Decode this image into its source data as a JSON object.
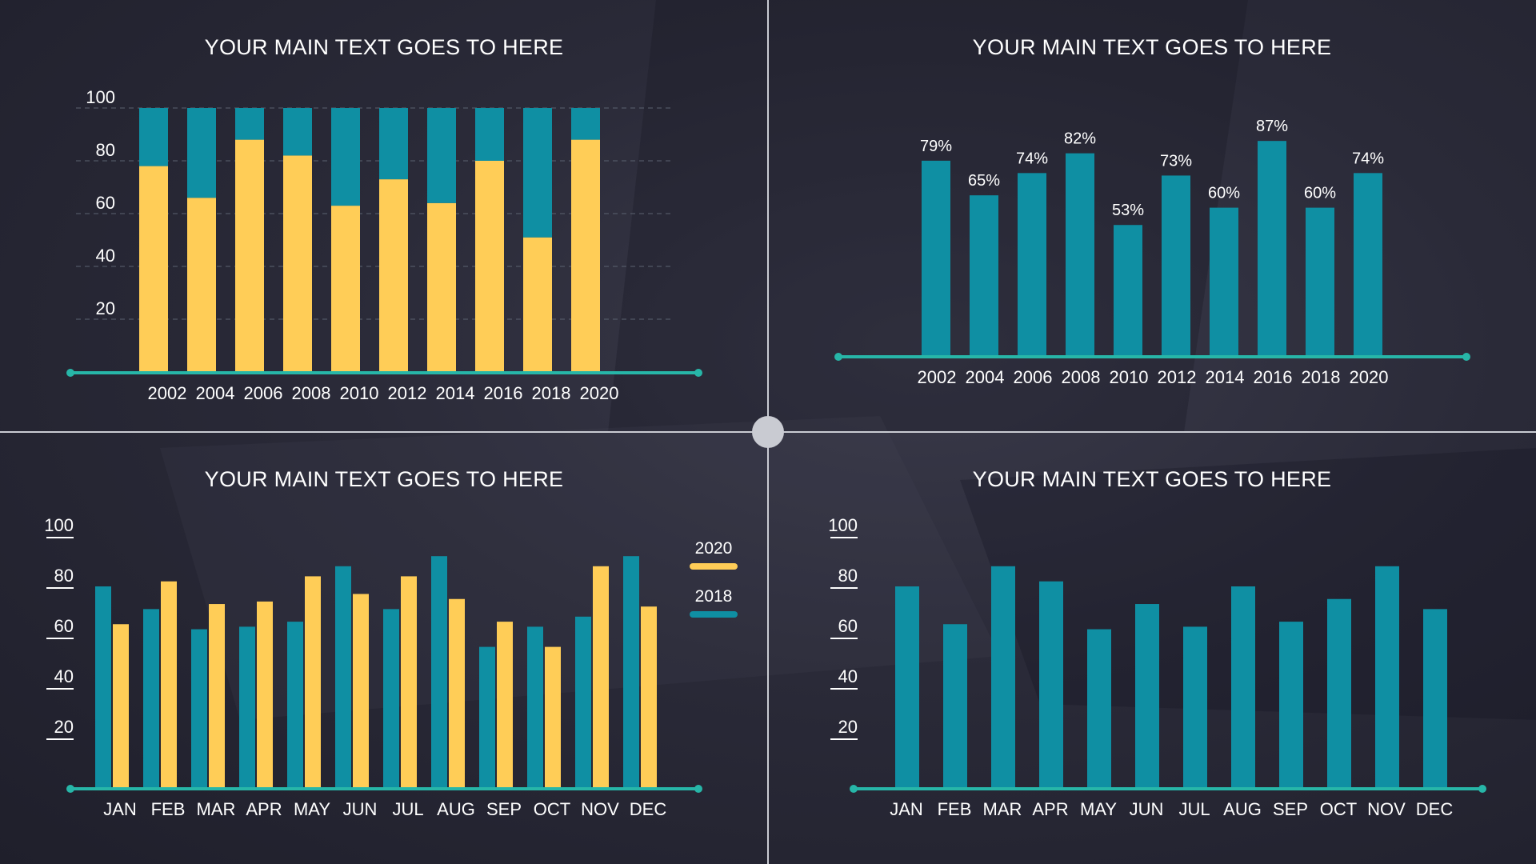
{
  "colors": {
    "teal": "#0f8fa3",
    "yellow": "#ffcd57",
    "axis": "#27b6a8",
    "grid": "#5b6270",
    "text": "#ffffff"
  },
  "chart_data": [
    {
      "type": "bar",
      "stacked": true,
      "title": "YOUR MAIN TEXT GOES TO HERE",
      "categories": [
        "2002",
        "2004",
        "2006",
        "2008",
        "2010",
        "2012",
        "2014",
        "2016",
        "2018",
        "2020"
      ],
      "series": [
        {
          "color": "yellow",
          "values": [
            78,
            66,
            88,
            82,
            63,
            73,
            64,
            80,
            51,
            88
          ]
        },
        {
          "color": "teal",
          "values": [
            22,
            34,
            12,
            18,
            37,
            27,
            36,
            20,
            49,
            12
          ]
        }
      ],
      "ylim": [
        0,
        100
      ],
      "yticks": [
        "20",
        "40",
        "60",
        "80",
        "100"
      ],
      "grid": true
    },
    {
      "type": "bar",
      "title": "YOUR MAIN TEXT GOES TO HERE",
      "categories": [
        "2002",
        "2004",
        "2006",
        "2008",
        "2010",
        "2012",
        "2014",
        "2016",
        "2018",
        "2020"
      ],
      "values": [
        79,
        65,
        74,
        82,
        53,
        73,
        60,
        87,
        60,
        74
      ],
      "data_labels": [
        "79%",
        "65%",
        "74%",
        "82%",
        "53%",
        "73%",
        "60%",
        "87%",
        "60%",
        "74%"
      ],
      "ylim": [
        0,
        100
      ]
    },
    {
      "type": "bar",
      "title": "YOUR MAIN TEXT GOES TO HERE",
      "categories": [
        "JAN",
        "FEB",
        "MAR",
        "APR",
        "MAY",
        "JUN",
        "JUL",
        "AUG",
        "SEP",
        "OCT",
        "NOV",
        "DEC"
      ],
      "series": [
        {
          "name": "2018",
          "color": "teal",
          "values": [
            80,
            71,
            63,
            64,
            66,
            88,
            71,
            92,
            56,
            64,
            68,
            92
          ]
        },
        {
          "name": "2020",
          "color": "yellow",
          "values": [
            65,
            82,
            73,
            74,
            84,
            77,
            84,
            75,
            66,
            56,
            88,
            72
          ]
        }
      ],
      "ylim": [
        0,
        100
      ],
      "yticks": [
        "20",
        "40",
        "60",
        "80",
        "100"
      ],
      "legend": "right"
    },
    {
      "type": "bar",
      "title": "YOUR MAIN TEXT GOES TO HERE",
      "categories": [
        "JAN",
        "FEB",
        "MAR",
        "APR",
        "MAY",
        "JUN",
        "JUL",
        "AUG",
        "SEP",
        "OCT",
        "NOV",
        "DEC"
      ],
      "values": [
        80,
        65,
        88,
        82,
        63,
        73,
        64,
        80,
        66,
        75,
        88,
        71
      ],
      "ylim": [
        0,
        100
      ],
      "yticks": [
        "20",
        "40",
        "60",
        "80",
        "100"
      ]
    }
  ]
}
